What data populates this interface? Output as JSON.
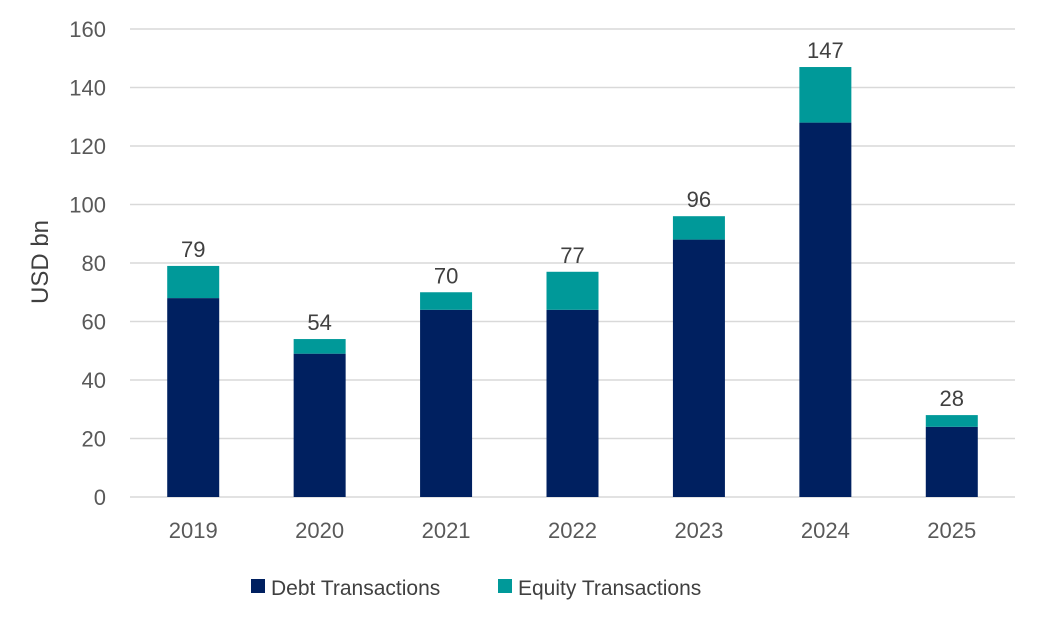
{
  "chart_data": {
    "type": "bar",
    "stacked": true,
    "title": "",
    "xlabel": "",
    "ylabel": "USD bn",
    "ylim": [
      0,
      160
    ],
    "yticks": [
      0,
      20,
      40,
      60,
      80,
      100,
      120,
      140,
      160
    ],
    "grid": true,
    "categories": [
      "2019",
      "2020",
      "2021",
      "2022",
      "2023",
      "2024",
      "2025"
    ],
    "series": [
      {
        "name": "Debt Transactions",
        "color": "#002060",
        "values": [
          68,
          49,
          64,
          64,
          88,
          128,
          24
        ]
      },
      {
        "name": "Equity Transactions",
        "color": "#009999",
        "values": [
          11,
          5,
          6,
          13,
          8,
          19,
          4
        ]
      }
    ],
    "totals": [
      "79",
      "54",
      "70",
      "77",
      "96",
      "147",
      "28"
    ],
    "legend_position": "bottom"
  }
}
